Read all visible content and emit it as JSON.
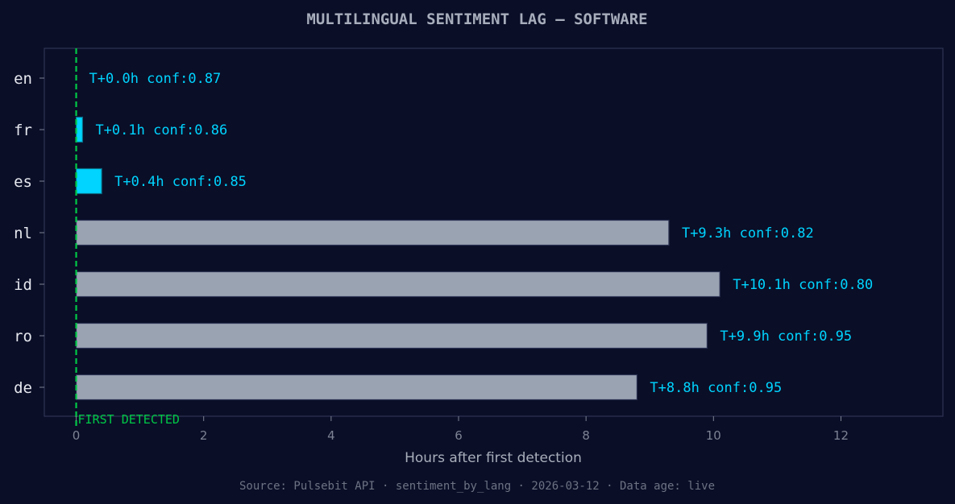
{
  "chart_data": {
    "type": "bar",
    "orientation": "horizontal",
    "title": "MULTILINGUAL SENTIMENT LAG — SOFTWARE",
    "xlabel": "Hours after first detection",
    "ylabel": "",
    "xlim": [
      -0.5,
      13.6
    ],
    "xticks": [
      0,
      2,
      4,
      6,
      8,
      10,
      12
    ],
    "grid": false,
    "categories": [
      "en",
      "fr",
      "es",
      "nl",
      "id",
      "ro",
      "de"
    ],
    "values": [
      0.0,
      0.1,
      0.4,
      9.3,
      10.1,
      9.9,
      8.8
    ],
    "labels": [
      "T+0.0h  conf:0.87",
      "T+0.1h  conf:0.86",
      "T+0.4h  conf:0.85",
      "T+9.3h  conf:0.82",
      "T+10.1h  conf:0.80",
      "T+9.9h  conf:0.95",
      "T+8.8h  conf:0.95"
    ],
    "highlight": [
      true,
      true,
      true,
      false,
      false,
      false,
      false
    ],
    "reference_line": {
      "x": 0,
      "label": "FIRST DETECTED"
    },
    "footer": "Source: Pulsebit API · sentiment_by_lang · 2026-03-12 · Data age: live"
  },
  "colors": {
    "background": "#0a0e27",
    "highlight_bar": "#00d4ff",
    "normal_bar": "#9aa3b2",
    "bar_edge": "#2a3152",
    "label": "#00d4ff",
    "reference_line": "#00c846",
    "title": "#a7adbb",
    "tick": "#7d8394",
    "category": "#e5e7ee",
    "axis_label": "#a9aebb",
    "footer": "#6d7384",
    "frame": "#2e3454"
  }
}
